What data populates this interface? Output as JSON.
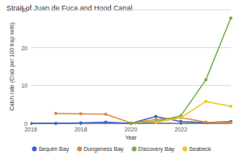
{
  "chart_data": {
    "type": "line",
    "title": "Strait of Juan de Fuca and Hood Canal",
    "x_label": "Year",
    "y_label": "Catch rate (Crab per 100 trap sets)",
    "x": [
      2016,
      2017,
      2018,
      2019,
      2020,
      2021,
      2022,
      2023,
      2024
    ],
    "series": [
      {
        "name": "Sequim Bay",
        "color": "#3d63c9",
        "values": [
          0,
          0,
          0.1,
          0.3,
          0,
          1.8,
          0.5,
          0.2,
          0.5
        ]
      },
      {
        "name": "Dungeness Bay",
        "color": "#dd8a3c",
        "values": [
          null,
          2.6,
          2.5,
          2.4,
          0.1,
          1.0,
          1.5,
          0.3,
          0.2
        ]
      },
      {
        "name": "Discovery Bay",
        "color": "#74b04a",
        "values": [
          null,
          null,
          null,
          null,
          0,
          0.5,
          2.0,
          11.5,
          27.8
        ]
      },
      {
        "name": "Seabeck",
        "color": "#f2c12e",
        "values": [
          null,
          null,
          null,
          null,
          null,
          0.2,
          1.5,
          5.8,
          4.5
        ]
      }
    ],
    "xlim": [
      2016,
      2024
    ],
    "xticks": [
      2016,
      2018,
      2020,
      2022
    ],
    "ylim": [
      0,
      30
    ],
    "yticks": [
      0,
      10,
      20,
      30
    ],
    "grid": true,
    "legend": "bottom",
    "marker": "circle"
  }
}
